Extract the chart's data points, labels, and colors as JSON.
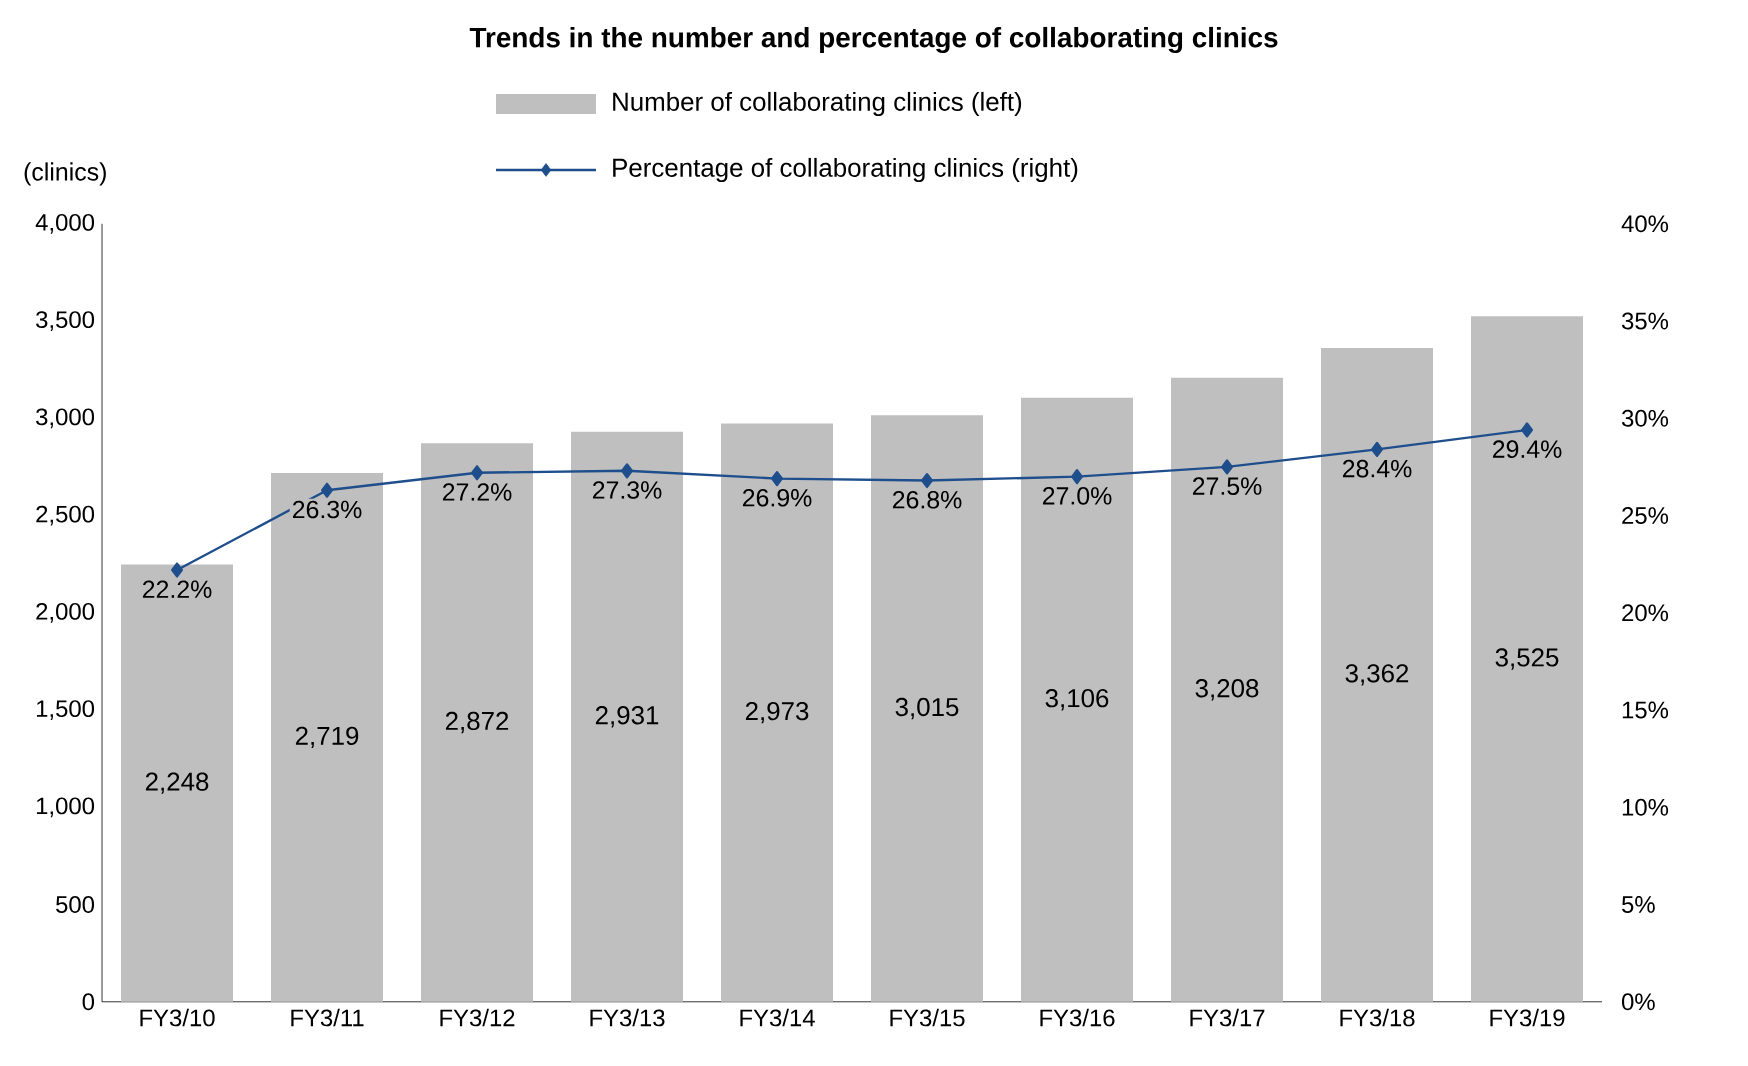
{
  "chart_data": {
    "type": "bar",
    "title": "Trends in the number and percentage of collaborating clinics",
    "ylabel": "(clinics)",
    "categories": [
      "FY3/10",
      "FY3/11",
      "FY3/12",
      "FY3/13",
      "FY3/14",
      "FY3/15",
      "FY3/16",
      "FY3/17",
      "FY3/18",
      "FY3/19"
    ],
    "series": [
      {
        "name": "Number of collaborating clinics (left)",
        "color": "#bfbfbf",
        "values": [
          2248,
          2719,
          2872,
          2931,
          2973,
          3015,
          3106,
          3208,
          3362,
          3525
        ],
        "value_labels": [
          "2,248",
          "2,719",
          "2,872",
          "2,931",
          "2,973",
          "3,015",
          "3,106",
          "3,208",
          "3,362",
          "3,525"
        ]
      },
      {
        "name": "Percentage of collaborating clinics (right)",
        "type": "line",
        "axis": "y2",
        "color": "#1f4e8c",
        "marker": "diamond",
        "values": [
          22.2,
          26.3,
          27.2,
          27.3,
          26.9,
          26.8,
          27.0,
          27.5,
          28.4,
          29.4
        ],
        "value_labels": [
          "22.2%",
          "26.3%",
          "27.2%",
          "27.3%",
          "26.9%",
          "26.8%",
          "27.0%",
          "27.5%",
          "28.4%",
          "29.4%"
        ]
      }
    ],
    "ylim": [
      0,
      4000
    ],
    "yticks": [
      {
        "value": 0,
        "label": "0"
      },
      {
        "value": 500,
        "label": "500"
      },
      {
        "value": 1000,
        "label": "1,000"
      },
      {
        "value": 1500,
        "label": "1,500"
      },
      {
        "value": 2000,
        "label": "2,000"
      },
      {
        "value": 2500,
        "label": "2,500"
      },
      {
        "value": 3000,
        "label": "3,000"
      },
      {
        "value": 3500,
        "label": "3,500"
      },
      {
        "value": 4000,
        "label": "4,000"
      }
    ],
    "y2lim": [
      0,
      40
    ],
    "y2ticks": [
      {
        "value": 0,
        "label": "0%"
      },
      {
        "value": 5,
        "label": "5%"
      },
      {
        "value": 10,
        "label": "10%"
      },
      {
        "value": 15,
        "label": "15%"
      },
      {
        "value": 20,
        "label": "20%"
      },
      {
        "value": 25,
        "label": "25%"
      },
      {
        "value": 30,
        "label": "30%"
      },
      {
        "value": 35,
        "label": "35%"
      },
      {
        "value": 40,
        "label": "40%"
      }
    ],
    "grid": false,
    "legend": "top"
  }
}
